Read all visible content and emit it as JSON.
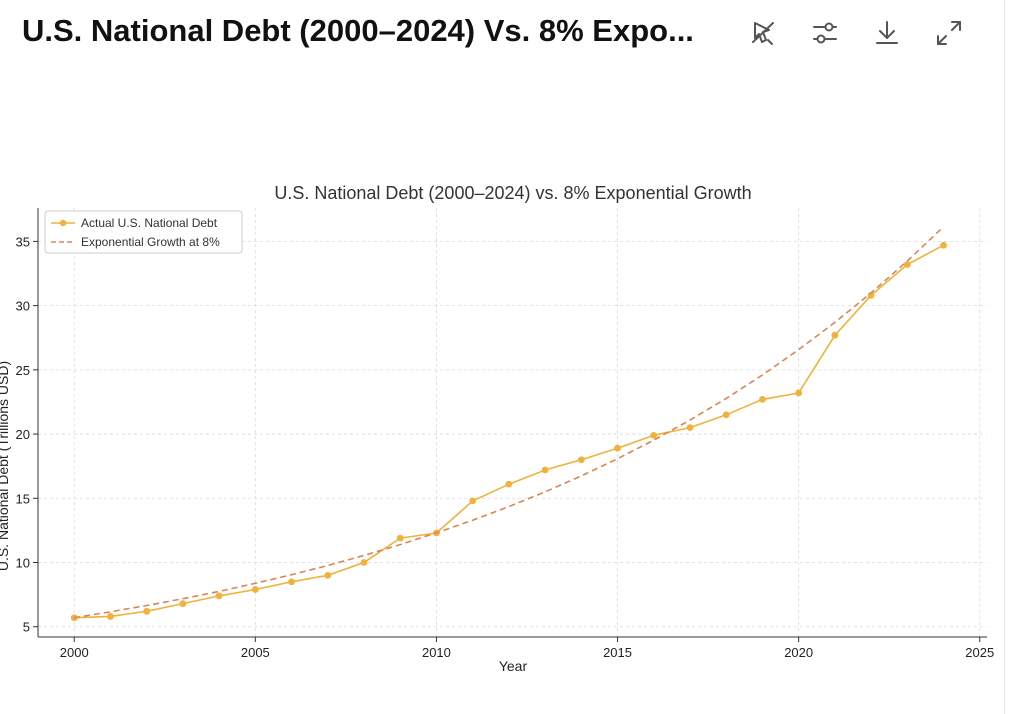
{
  "card": {
    "title": "U.S. National Debt (2000–2024) Vs. 8% Expo..."
  },
  "toolbar": [
    {
      "icon": "interactive-off-icon"
    },
    {
      "icon": "sliders-icon"
    },
    {
      "icon": "download-icon"
    },
    {
      "icon": "expand-icon"
    }
  ],
  "chart_data": {
    "type": "line",
    "title": "U.S. National Debt (2000–2024) vs. 8% Exponential Growth",
    "xlabel": "Year",
    "ylabel": "U.S. National Debt (Trillions USD)",
    "xlim": [
      1999,
      2025.2
    ],
    "ylim": [
      4.2,
      37.6
    ],
    "xticks": [
      2000,
      2005,
      2010,
      2015,
      2020,
      2025
    ],
    "yticks": [
      5,
      10,
      15,
      20,
      25,
      30,
      35
    ],
    "grid": true,
    "legend": "top-left",
    "x": [
      2000,
      2001,
      2002,
      2003,
      2004,
      2005,
      2006,
      2007,
      2008,
      2009,
      2010,
      2011,
      2012,
      2013,
      2014,
      2015,
      2016,
      2017,
      2018,
      2019,
      2020,
      2021,
      2022,
      2023,
      2024
    ],
    "series": [
      {
        "name": "Actual U.S. National Debt",
        "color": "#F0B23C",
        "style": "solid-marker",
        "values": [
          5.7,
          5.8,
          6.2,
          6.8,
          7.4,
          7.9,
          8.5,
          9.0,
          10.0,
          11.9,
          12.3,
          14.8,
          16.1,
          17.2,
          18.0,
          18.9,
          19.9,
          20.5,
          21.5,
          22.7,
          23.2,
          27.7,
          30.8,
          33.2,
          34.7
        ]
      },
      {
        "name": "Exponential Growth at 8%",
        "color": "#DD8452",
        "style": "dashed",
        "values": [
          5.7,
          6.16,
          6.65,
          7.18,
          7.75,
          8.38,
          9.05,
          9.77,
          10.55,
          11.39,
          12.31,
          13.29,
          14.35,
          15.5,
          16.74,
          18.08,
          19.53,
          21.09,
          22.78,
          24.6,
          26.57,
          28.69,
          30.99,
          33.47,
          36.14
        ]
      }
    ]
  }
}
